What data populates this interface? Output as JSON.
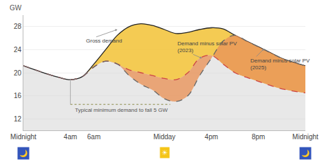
{
  "chart_data": {
    "type": "line",
    "x": [
      0,
      1,
      2,
      3,
      4,
      5,
      6,
      7,
      8,
      9,
      10,
      11,
      12,
      13,
      14,
      15,
      16,
      17,
      18,
      19,
      20,
      21,
      22,
      23,
      24
    ],
    "xlim": [
      0,
      24
    ],
    "xticks": [
      {
        "value": 0,
        "label": "Midnight"
      },
      {
        "value": 4,
        "label": "4am"
      },
      {
        "value": 6,
        "label": "6am"
      },
      {
        "value": 12,
        "label": "Midday"
      },
      {
        "value": 16,
        "label": "4pm"
      },
      {
        "value": 20,
        "label": "8pm"
      },
      {
        "value": 24,
        "label": "Midnight"
      }
    ],
    "ylim": [
      10,
      30
    ],
    "yticks": [
      12,
      16,
      20,
      24,
      28
    ],
    "grid": true,
    "y_label": "GW",
    "series": [
      {
        "color": "#222222",
        "line_style": "solid",
        "values": [
          21.2,
          20.5,
          19.8,
          19.2,
          18.8,
          19.3,
          21.5,
          24.0,
          26.5,
          28.0,
          28.5,
          28.2,
          27.5,
          26.8,
          27.0,
          27.5,
          27.8,
          27.6,
          26.5,
          25.5,
          24.5,
          23.5,
          22.5,
          21.8,
          21.2
        ]
      },
      {
        "color": "#cc4444",
        "line_style": "dashed",
        "values": [
          21.2,
          20.5,
          19.8,
          19.2,
          18.8,
          19.3,
          21.0,
          22.0,
          21.5,
          20.5,
          20.0,
          19.5,
          19.0,
          18.8,
          20.0,
          22.5,
          23.0,
          21.5,
          20.0,
          19.2,
          18.5,
          17.8,
          17.2,
          16.8,
          16.5
        ]
      },
      {
        "color": "#666666",
        "line_style": "dashed",
        "values": [
          21.2,
          20.5,
          19.8,
          19.2,
          18.8,
          19.3,
          21.0,
          22.0,
          21.5,
          19.5,
          18.0,
          17.0,
          15.5,
          15.0,
          16.0,
          19.5,
          22.5,
          25.5,
          26.5,
          25.5,
          24.5,
          23.5,
          22.5,
          21.8,
          21.2
        ]
      },
      {
        "x": [
          4.0,
          12.5
        ],
        "values": [
          14.5,
          14.5
        ],
        "color": "#888844",
        "line_style": "dotted"
      },
      {
        "x": [
          4.0,
          4.0
        ],
        "values": [
          14.5,
          18.8
        ],
        "color": "#aaaaaa",
        "line_style": "solid"
      }
    ],
    "annotations": [
      {
        "text": "Gross demand",
        "x": 8.0,
        "y": 27.5,
        "text_x": 5.2,
        "text_y": 25.5
      },
      {
        "text": "Demand minus solar PV\n(2023)",
        "x": 15.2,
        "y": 22.5,
        "text_x": 13.0,
        "text_y": 24.5
      },
      {
        "text": "Demand minus solar PV\n(2025)",
        "x": 20.5,
        "y": 24.2,
        "text_x": 19.2,
        "text_y": 21.5
      },
      {
        "text": "Typical minimum demand to fall 5 GW",
        "x": 4.3,
        "y": 13.5
      }
    ],
    "icons": [
      {
        "text": "🌙",
        "x": 0,
        "color": "#3355bb"
      },
      {
        "text": "☀",
        "x": 12,
        "color": "#f5c518"
      },
      {
        "text": "🌙",
        "x": 24,
        "color": "#3355bb"
      }
    ]
  }
}
